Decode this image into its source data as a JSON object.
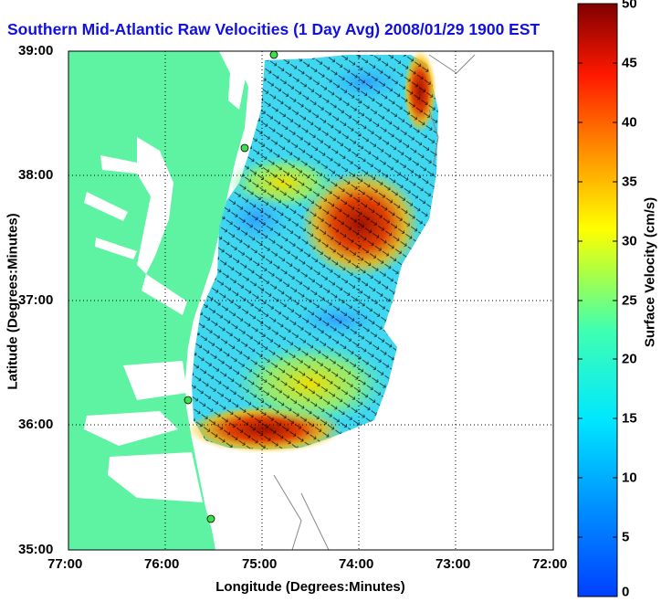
{
  "title": "Southern Mid-Atlantic Raw Velocities (1 Day Avg) 2008/01/29 1900 EST",
  "axes": {
    "xlabel": "Longitude (Degrees:Minutes)",
    "ylabel": "Latitude (Degrees:Minutes)",
    "xticks": [
      "77:00",
      "76:00",
      "75:00",
      "74:00",
      "73:00",
      "72:00"
    ],
    "yticks": [
      "39:00",
      "38:00",
      "37:00",
      "36:00",
      "35:00"
    ],
    "xlim": [
      -77,
      -72
    ],
    "ylim": [
      35,
      39
    ],
    "grid": "dotted"
  },
  "colorbar": {
    "label": "Surface Velocity (cm/s)",
    "ticks": [
      "50",
      "45",
      "40",
      "35",
      "30",
      "25",
      "20",
      "15",
      "10",
      "5",
      "0"
    ],
    "range": [
      0,
      50
    ]
  },
  "colors": {
    "land": "#5ef2a3",
    "water": "#ffffff",
    "title": "#1010e0"
  }
}
